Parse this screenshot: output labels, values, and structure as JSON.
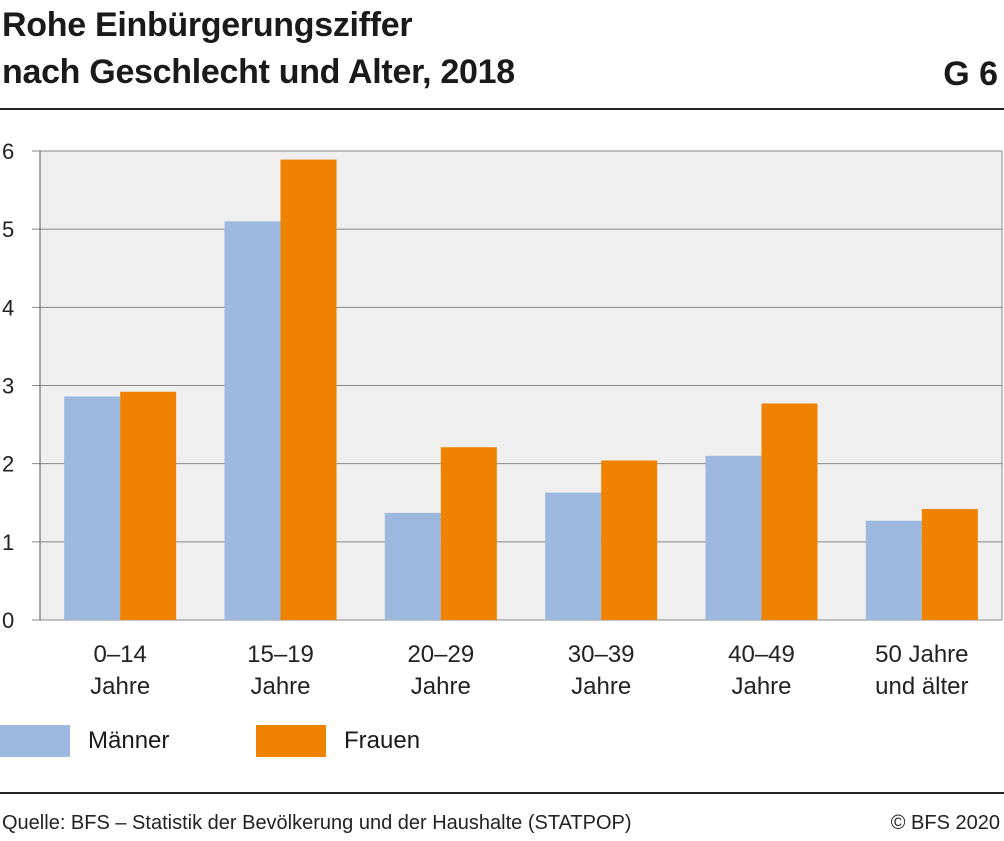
{
  "title_line1": "Rohe Einbürgerungsziffer",
  "title_line2": "nach Geschlecht und Alter, 2018",
  "figure_number": "G 6",
  "source": "Quelle: BFS – Statistik der Bevölkerung und der Haushalte (STATPOP)",
  "copyright": "© BFS 2020",
  "colors": {
    "maenner": "#9db8de",
    "frauen": "#ef8200",
    "plot_bg": "#efefef",
    "grid": "#888888"
  },
  "chart_data": {
    "type": "bar",
    "title": "Rohe Einbürgerungsziffer nach Geschlecht und Alter, 2018",
    "categories": [
      [
        "0–14",
        "Jahre"
      ],
      [
        "15–19",
        "Jahre"
      ],
      [
        "20–29",
        "Jahre"
      ],
      [
        "30–39",
        "Jahre"
      ],
      [
        "40–49",
        "Jahre"
      ],
      [
        "50 Jahre",
        "und älter"
      ]
    ],
    "series": [
      {
        "name": "Männer",
        "color": "#9db8de",
        "values": [
          2.86,
          5.1,
          1.37,
          1.63,
          2.1,
          1.27
        ]
      },
      {
        "name": "Frauen",
        "color": "#ef8200",
        "values": [
          2.92,
          5.89,
          2.21,
          2.04,
          2.77,
          1.42
        ]
      }
    ],
    "ylim": [
      0,
      6
    ],
    "yticks": [
      0,
      1,
      2,
      3,
      4,
      5,
      6
    ],
    "grid": true,
    "legend": "bottom-left"
  }
}
